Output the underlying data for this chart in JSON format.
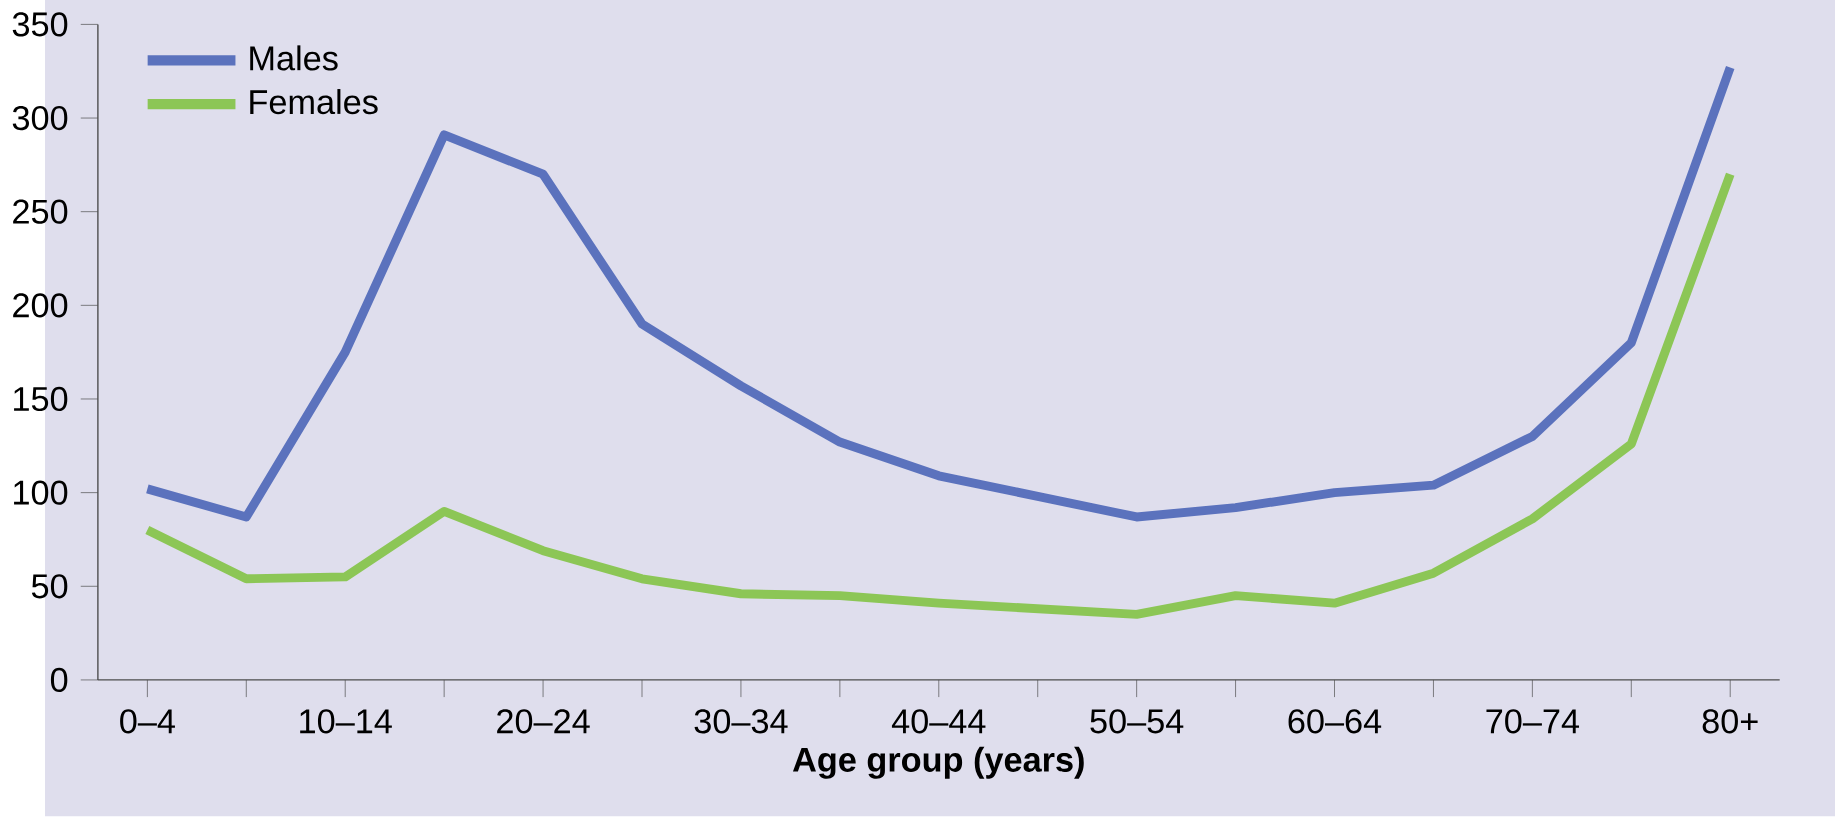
{
  "chart_data": {
    "type": "line",
    "xlabel": "Age group (years)",
    "categories": [
      "0–4",
      null,
      "10–14",
      null,
      "20–24",
      null,
      "30–34",
      null,
      "40–44",
      null,
      "50–54",
      null,
      "60–64",
      null,
      "70–74",
      null,
      "80+"
    ],
    "series": [
      {
        "name": "Males",
        "color": "#5b72bd",
        "values": [
          102,
          87,
          175,
          291,
          270,
          190,
          157,
          127,
          109,
          98,
          87,
          92,
          100,
          104,
          130,
          180,
          327
        ]
      },
      {
        "name": "Females",
        "color": "#8cc656",
        "values": [
          80,
          54,
          55,
          90,
          69,
          54,
          46,
          45,
          41,
          38,
          35,
          45,
          41,
          57,
          86,
          126,
          270
        ]
      }
    ],
    "ylim": [
      0,
      350
    ],
    "yticks": [
      0,
      50,
      100,
      150,
      200,
      250,
      300,
      350
    ],
    "grid": false,
    "legend": "top left",
    "marker": "none",
    "line_style": "solid"
  }
}
